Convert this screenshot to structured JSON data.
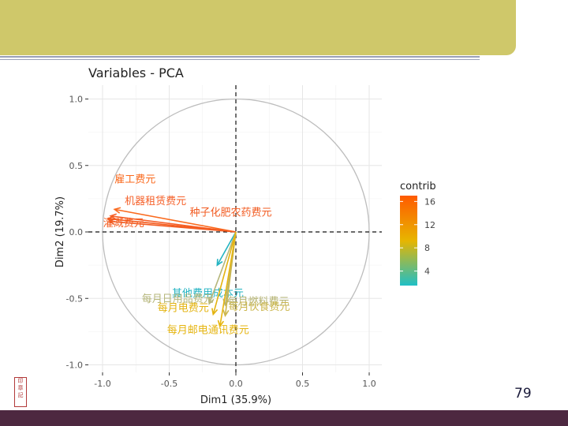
{
  "slide": {
    "page_number": "79",
    "banner_color": "#cfc86a",
    "footer_color": "#4d2840",
    "seal_icon": "red-seal-stamp"
  },
  "chart_data": {
    "type": "scatter",
    "title": "Variables - PCA",
    "xlabel": "Dim1 (35.9%)",
    "ylabel": "Dim2 (19.7%)",
    "xlim": [
      -1.0,
      1.0
    ],
    "ylim": [
      -1.0,
      1.0
    ],
    "xticks": [
      "-1.0",
      "-0.5",
      "0.0",
      "0.5",
      "1.0"
    ],
    "yticks": [
      "1.0",
      "0.5",
      "0.0",
      "-0.5",
      "-1.0"
    ],
    "grid": true,
    "unit_circle": true,
    "legend": {
      "title": "contrib",
      "ticks": [
        "16",
        "12",
        "8",
        "4"
      ],
      "placement": "right",
      "colors": [
        "#1fbfc6",
        "#e7b500",
        "#ff5a00"
      ]
    },
    "variables": [
      {
        "label": "雇工费元",
        "x": -0.91,
        "y": 0.17,
        "color": "#fa6a1e"
      },
      {
        "label": "机器租赁费元",
        "x": -0.94,
        "y": 0.12,
        "color": "#f6612a"
      },
      {
        "label": "灌溉费元",
        "x": -0.96,
        "y": 0.1,
        "color": "#f45a1c"
      },
      {
        "label": "种子化肥农药费元",
        "x": -0.95,
        "y": 0.08,
        "color": "#f25c22"
      },
      {
        "label": "其他费用成本元",
        "x": -0.14,
        "y": -0.25,
        "color": "#23b3c2"
      },
      {
        "label": "每月日用品费元",
        "x": -0.2,
        "y": -0.54,
        "color": "#b5b67a"
      },
      {
        "label": "每月燃料费元",
        "x": -0.08,
        "y": -0.55,
        "color": "#b6b474"
      },
      {
        "label": "每月电费元",
        "x": -0.17,
        "y": -0.62,
        "color": "#e3b310"
      },
      {
        "label": "每月伙食费元",
        "x": -0.08,
        "y": -0.63,
        "color": "#cbb64d"
      },
      {
        "label": "每月邮电通讯费元",
        "x": -0.12,
        "y": -0.71,
        "color": "#e6b510"
      }
    ]
  }
}
